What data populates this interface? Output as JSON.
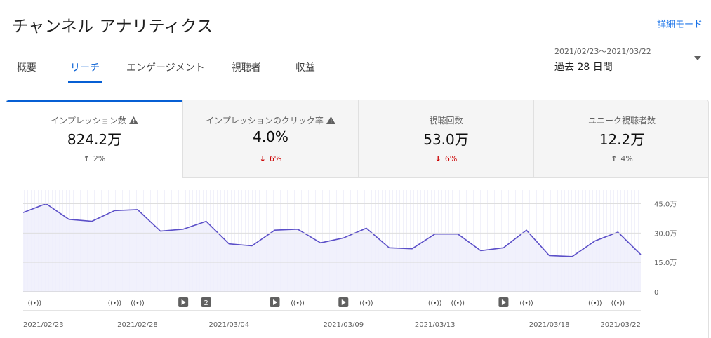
{
  "header": {
    "title": "チャンネル アナリティクス",
    "detail_link": "詳細モード"
  },
  "tabs": [
    {
      "label": "概要",
      "active": false
    },
    {
      "label": "リーチ",
      "active": true
    },
    {
      "label": "エンゲージメント",
      "active": false
    },
    {
      "label": "視聴者",
      "active": false
    },
    {
      "label": "収益",
      "active": false
    }
  ],
  "date_range": {
    "range_text": "2021/02/23～2021/03/22",
    "label": "過去 28 日間"
  },
  "metrics": [
    {
      "label": "インプレッション数",
      "value": "824.2万",
      "change": "2%",
      "direction": "up",
      "warning": true,
      "active": true
    },
    {
      "label": "インプレッションのクリック率",
      "value": "4.0%",
      "change": "6%",
      "direction": "down",
      "warning": true,
      "active": false
    },
    {
      "label": "視聴回数",
      "value": "53.0万",
      "change": "6%",
      "direction": "down",
      "warning": false,
      "active": false
    },
    {
      "label": "ユニーク視聴者数",
      "value": "12.2万",
      "change": "4%",
      "direction": "up",
      "warning": false,
      "active": false
    }
  ],
  "colors": {
    "accent": "#065fd4",
    "line": "#5b4fc8",
    "area_fill": "#efeefb",
    "down": "#cc0000"
  },
  "chart_data": {
    "type": "area",
    "x": [
      "2021/02/23",
      "2021/02/24",
      "2021/02/25",
      "2021/02/26",
      "2021/02/27",
      "2021/02/28",
      "2021/03/01",
      "2021/03/02",
      "2021/03/03",
      "2021/03/04",
      "2021/03/05",
      "2021/03/06",
      "2021/03/07",
      "2021/03/08",
      "2021/03/09",
      "2021/03/10",
      "2021/03/11",
      "2021/03/12",
      "2021/03/13",
      "2021/03/14",
      "2021/03/15",
      "2021/03/16",
      "2021/03/17",
      "2021/03/18",
      "2021/03/19",
      "2021/03/20",
      "2021/03/21",
      "2021/03/22"
    ],
    "series": [
      {
        "values": [
          40.5,
          45.0,
          37.0,
          36.0,
          41.5,
          42.0,
          31.0,
          32.0,
          36.0,
          24.5,
          23.5,
          31.5,
          32.0,
          25.0,
          27.5,
          32.5,
          22.5,
          22.0,
          29.5,
          29.5,
          21.0,
          22.5,
          31.5,
          18.5,
          18.0,
          26.0,
          30.5,
          19.0
        ]
      }
    ],
    "y_ticks": [
      "45.0万",
      "30.0万",
      "15.0万",
      "0"
    ],
    "y_tick_values": [
      45,
      30,
      15,
      0
    ],
    "ylim": [
      0,
      52
    ],
    "x_tick_labels": [
      {
        "label": "2021/02/23",
        "index": 0
      },
      {
        "label": "2021/02/28",
        "index": 5
      },
      {
        "label": "2021/03/04",
        "index": 9
      },
      {
        "label": "2021/03/09",
        "index": 14
      },
      {
        "label": "2021/03/13",
        "index": 18
      },
      {
        "label": "2021/03/18",
        "index": 23
      },
      {
        "label": "2021/03/22",
        "index": 27
      }
    ],
    "grid": true,
    "markers": [
      {
        "type": "live",
        "index": 0.5
      },
      {
        "type": "live",
        "index": 4.0
      },
      {
        "type": "live",
        "index": 5.0
      },
      {
        "type": "video",
        "index": 7.0
      },
      {
        "type": "count",
        "index": 8.0,
        "label": "2"
      },
      {
        "type": "video",
        "index": 11.0
      },
      {
        "type": "live",
        "index": 12.0
      },
      {
        "type": "video",
        "index": 14.0
      },
      {
        "type": "live",
        "index": 15.0
      },
      {
        "type": "live",
        "index": 18.0
      },
      {
        "type": "live",
        "index": 19.0
      },
      {
        "type": "video",
        "index": 21.0
      },
      {
        "type": "live",
        "index": 22.0
      },
      {
        "type": "live",
        "index": 25.0
      },
      {
        "type": "live",
        "index": 26.0
      }
    ]
  }
}
